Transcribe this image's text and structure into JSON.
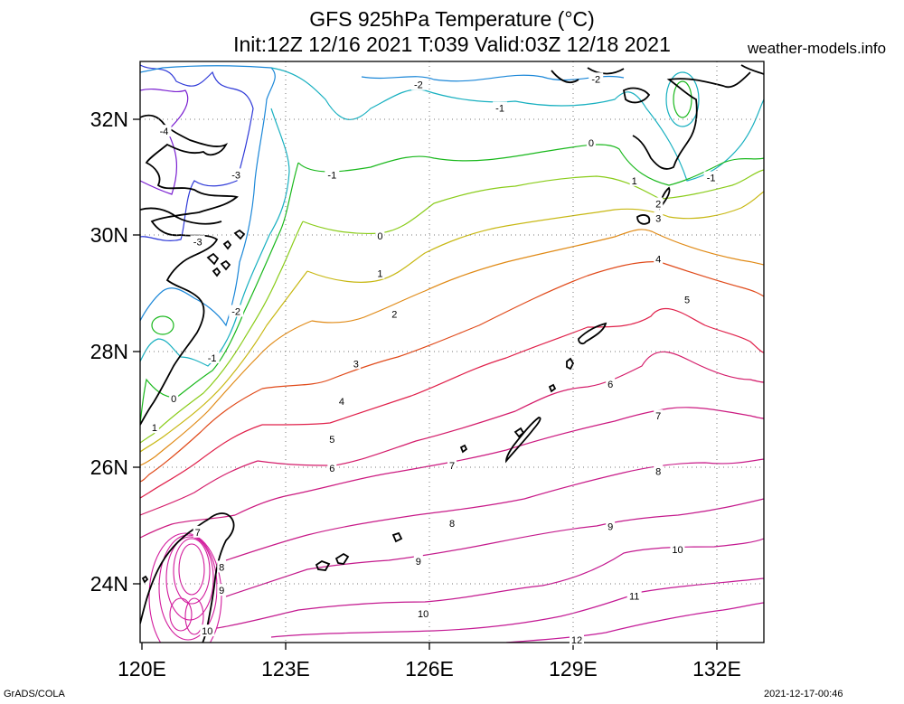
{
  "header": {
    "title": "GFS 925hPa Temperature (°C)",
    "subtitle": "Init:12Z 12/16 2021 T:039 Valid:03Z 12/18 2021",
    "site": "weather-models.info"
  },
  "footer": {
    "left": "GrADS/COLA",
    "right": "2021-12-17-00:46"
  },
  "map": {
    "lon_range": [
      120,
      133
    ],
    "lat_range": [
      23,
      33
    ],
    "x_ticks": [
      "120E",
      "123E",
      "126E",
      "129E",
      "132E"
    ],
    "y_ticks": [
      "32N",
      "30N",
      "28N",
      "26N",
      "24N"
    ],
    "grid": "dotted",
    "contours": [
      {
        "value": -4,
        "color": "#7a1fd1"
      },
      {
        "value": -3,
        "color": "#2f3ad8"
      },
      {
        "value": -2,
        "color": "#1b87d8"
      },
      {
        "value": -1,
        "color": "#18b0c0"
      },
      {
        "value": 0,
        "color": "#19b81c"
      },
      {
        "value": 1,
        "color": "#8acc1a"
      },
      {
        "value": 2,
        "color": "#c8b814"
      },
      {
        "value": 3,
        "color": "#e08a16"
      },
      {
        "value": 4,
        "color": "#e04a1a"
      },
      {
        "value": 5,
        "color": "#e0204a"
      },
      {
        "value": 6,
        "color": "#d41c6a"
      },
      {
        "value": 7,
        "color": "#cc1a80"
      },
      {
        "value": 8,
        "color": "#c81a88"
      },
      {
        "value": 9,
        "color": "#c41a8c"
      },
      {
        "value": 10,
        "color": "#c41a90"
      },
      {
        "value": 11,
        "color": "#c41a94"
      },
      {
        "value": 12,
        "color": "#c41a98"
      }
    ],
    "contour_labels": [
      {
        "text": "-2",
        "lon": 125.8,
        "lat": 32.6
      },
      {
        "text": "-2",
        "lon": 129.5,
        "lat": 32.7
      },
      {
        "text": "-1",
        "lon": 127.5,
        "lat": 32.2
      },
      {
        "text": "-1",
        "lon": 124.0,
        "lat": 31.05
      },
      {
        "text": "-1",
        "lon": 131.9,
        "lat": 31.0
      },
      {
        "text": "-4",
        "lon": 120.5,
        "lat": 31.8
      },
      {
        "text": "-3",
        "lon": 122.0,
        "lat": 31.05
      },
      {
        "text": "-3",
        "lon": 121.2,
        "lat": 29.9
      },
      {
        "text": "-2",
        "lon": 122.0,
        "lat": 28.7
      },
      {
        "text": "-1",
        "lon": 121.5,
        "lat": 27.9
      },
      {
        "text": "0",
        "lon": 129.4,
        "lat": 31.6
      },
      {
        "text": "0",
        "lon": 125.0,
        "lat": 30.0
      },
      {
        "text": "0",
        "lon": 120.7,
        "lat": 27.2
      },
      {
        "text": "1",
        "lon": 130.3,
        "lat": 30.95
      },
      {
        "text": "1",
        "lon": 125.0,
        "lat": 29.35
      },
      {
        "text": "1",
        "lon": 120.3,
        "lat": 26.7
      },
      {
        "text": "2",
        "lon": 130.8,
        "lat": 30.55
      },
      {
        "text": "2",
        "lon": 125.3,
        "lat": 28.65
      },
      {
        "text": "3",
        "lon": 130.8,
        "lat": 30.3
      },
      {
        "text": "3",
        "lon": 124.5,
        "lat": 27.8
      },
      {
        "text": "4",
        "lon": 130.8,
        "lat": 29.6
      },
      {
        "text": "4",
        "lon": 124.2,
        "lat": 27.15
      },
      {
        "text": "5",
        "lon": 131.4,
        "lat": 28.9
      },
      {
        "text": "5",
        "lon": 124.0,
        "lat": 26.5
      },
      {
        "text": "6",
        "lon": 129.8,
        "lat": 27.45
      },
      {
        "text": "6",
        "lon": 124.0,
        "lat": 26.0
      },
      {
        "text": "7",
        "lon": 130.8,
        "lat": 26.9
      },
      {
        "text": "7",
        "lon": 126.5,
        "lat": 26.05
      },
      {
        "text": "7",
        "lon": 121.2,
        "lat": 24.9
      },
      {
        "text": "8",
        "lon": 130.8,
        "lat": 25.95
      },
      {
        "text": "8",
        "lon": 126.5,
        "lat": 25.05
      },
      {
        "text": "8",
        "lon": 121.7,
        "lat": 24.3
      },
      {
        "text": "9",
        "lon": 129.8,
        "lat": 25.0
      },
      {
        "text": "9",
        "lon": 125.8,
        "lat": 24.4
      },
      {
        "text": "9",
        "lon": 121.7,
        "lat": 23.9
      },
      {
        "text": "10",
        "lon": 131.2,
        "lat": 24.6
      },
      {
        "text": "10",
        "lon": 125.9,
        "lat": 23.5
      },
      {
        "text": "10",
        "lon": 121.4,
        "lat": 23.2
      },
      {
        "text": "11",
        "lon": 130.3,
        "lat": 23.8
      },
      {
        "text": "12",
        "lon": 129.1,
        "lat": 23.05
      }
    ]
  }
}
